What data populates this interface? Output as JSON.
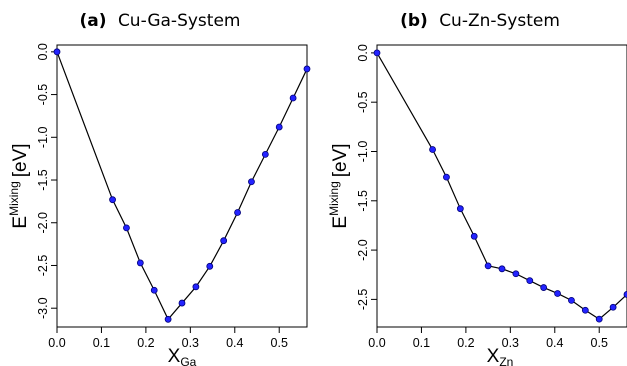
{
  "chart_data": [
    {
      "type": "line",
      "title": "Cu-Ga-System",
      "panel_label": "(a)",
      "xlabel_main": "X",
      "xlabel_sub": "Ga",
      "ylabel_main": "E",
      "ylabel_sup": "Mixing",
      "ylabel_unit": "[eV]",
      "xlim": [
        0,
        0.5625
      ],
      "ylim": [
        -3.22,
        0.08
      ],
      "xticks": [
        0.0,
        0.1,
        0.2,
        0.3,
        0.4,
        0.5
      ],
      "xtick_labels": [
        "0.0",
        "0.1",
        "0.2",
        "0.3",
        "0.4",
        "0.5"
      ],
      "yticks": [
        0.0,
        -0.5,
        -1.0,
        -1.5,
        -2.0,
        -2.5,
        -3.0
      ],
      "ytick_labels": [
        "0.0",
        "-0.5",
        "-1.0",
        "-1.5",
        "-2.0",
        "-2.5",
        "-3.0"
      ],
      "grid": false,
      "x": [
        0.0,
        0.125,
        0.15625,
        0.1875,
        0.21875,
        0.25,
        0.28125,
        0.3125,
        0.34375,
        0.375,
        0.40625,
        0.4375,
        0.46875,
        0.5,
        0.53125,
        0.5625
      ],
      "y": [
        0.0,
        -1.73,
        -2.06,
        -2.47,
        -2.79,
        -3.13,
        -2.94,
        -2.75,
        -2.51,
        -2.21,
        -1.88,
        -1.52,
        -1.2,
        -0.88,
        -0.54,
        -0.2
      ],
      "color": "#2323ff"
    },
    {
      "type": "line",
      "title": "Cu-Zn-System",
      "panel_label": "(b)",
      "xlabel_main": "X",
      "xlabel_sub": "Zn",
      "ylabel_main": "E",
      "ylabel_sup": "Mixing",
      "ylabel_unit": "[eV]",
      "xlim": [
        0,
        0.5625
      ],
      "ylim": [
        -2.78,
        0.08
      ],
      "xticks": [
        0.0,
        0.1,
        0.2,
        0.3,
        0.4,
        0.5
      ],
      "xtick_labels": [
        "0.0",
        "0.1",
        "0.2",
        "0.3",
        "0.4",
        "0.5"
      ],
      "yticks": [
        0.0,
        -0.5,
        -1.0,
        -1.5,
        -2.0,
        -2.5
      ],
      "ytick_labels": [
        "0.0",
        "-0.5",
        "-1.0",
        "-1.5",
        "-2.0",
        "-2.5"
      ],
      "grid": false,
      "x": [
        0.0,
        0.125,
        0.15625,
        0.1875,
        0.21875,
        0.25,
        0.28125,
        0.3125,
        0.34375,
        0.375,
        0.40625,
        0.4375,
        0.46875,
        0.5,
        0.53125,
        0.5625
      ],
      "y": [
        0.0,
        -0.98,
        -1.26,
        -1.58,
        -1.86,
        -2.16,
        -2.19,
        -2.24,
        -2.31,
        -2.38,
        -2.44,
        -2.51,
        -2.61,
        -2.7,
        -2.58,
        -2.45
      ],
      "color": "#2323ff"
    }
  ]
}
